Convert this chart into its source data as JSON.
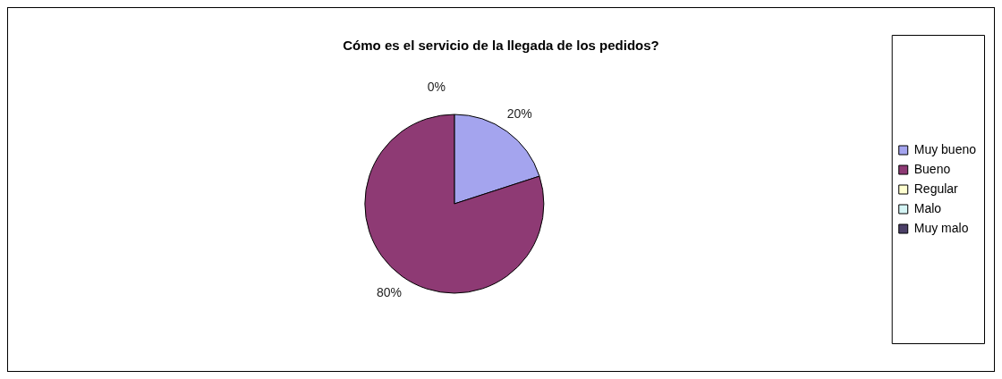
{
  "chart_data": {
    "type": "pie",
    "title": "Cómo es el servicio de la llegada de los pedidos?",
    "categories": [
      "Muy bueno",
      "Bueno",
      "Regular",
      "Malo",
      "Muy malo"
    ],
    "values": [
      20,
      80,
      0,
      0,
      0
    ],
    "colors": [
      "#a4a4ee",
      "#8e3a74",
      "#ffffd0",
      "#d4f4f4",
      "#4c4068"
    ],
    "value_labels": [
      "20%",
      "80%",
      "0%",
      null,
      null
    ],
    "legend": "right"
  }
}
